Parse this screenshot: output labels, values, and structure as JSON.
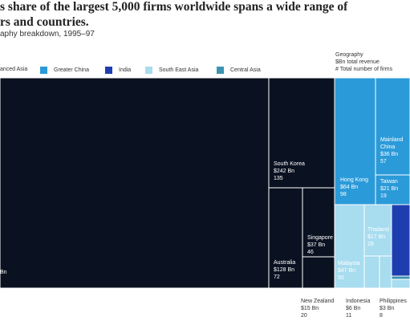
{
  "title_lines": [
    "s share of the largest 5,000 firms worldwide spans a wide range of",
    "rs and countries."
  ],
  "subtitle": "aphy breakdown, 1995–97",
  "legend": [
    {
      "label": "anced Asia",
      "color": "#0a1120"
    },
    {
      "label": "Greater China",
      "color": "#2b9ad9"
    },
    {
      "label": "India",
      "color": "#1e3eb0"
    },
    {
      "label": "South East Asia",
      "color": "#a8dcef"
    },
    {
      "label": "Central Asia",
      "color": "#3c93b2"
    }
  ],
  "key": {
    "title": "Geography",
    "line1": "$Bn total revenue",
    "line2": "# Total number of firms"
  },
  "chart_data": {
    "type": "treemap",
    "title": "s share of the largest 5,000 firms worldwide spans a wide range of rs and countries.",
    "subtitle": "aphy breakdown, 1995–97",
    "nodes": [
      {
        "name": "",
        "group": "anced Asia",
        "revenue_label": "Bn"
      },
      {
        "name": "South Korea",
        "group": "anced Asia",
        "revenue_label": "$242 Bn",
        "revenue_bn": 242,
        "firms": 135
      },
      {
        "name": "Australia",
        "group": "anced Asia",
        "revenue_label": "$128 Bn",
        "revenue_bn": 128,
        "firms": 72
      },
      {
        "name": "Singapore",
        "group": "anced Asia",
        "revenue_label": "$37 Bn",
        "revenue_bn": 37,
        "firms": 46
      },
      {
        "name": "New Zealand",
        "group": "anced Asia",
        "revenue_label": "$15 Bn",
        "revenue_bn": 15,
        "firms": 20
      },
      {
        "name": "Hong Kong",
        "group": "Greater China",
        "revenue_label": "$64 Bn",
        "revenue_bn": 64,
        "firms": 98
      },
      {
        "name": "Mainland China",
        "group": "Greater China",
        "revenue_label": "$36 Bn",
        "revenue_bn": 36,
        "firms": 57
      },
      {
        "name": "Taiwan",
        "group": "Greater China",
        "revenue_label": "$21 Bn",
        "revenue_bn": 21,
        "firms": 19
      },
      {
        "name": "Malaysia",
        "group": "South East Asia",
        "revenue_label": "$47 Bn",
        "revenue_bn": 47,
        "firms": 50
      },
      {
        "name": "Thailand",
        "group": "South East Asia",
        "revenue_label": "$17 Bn",
        "revenue_bn": 17,
        "firms": 28
      },
      {
        "name": "Indonesia",
        "group": "South East Asia",
        "revenue_label": "$6 Bn",
        "revenue_bn": 6,
        "firms": 11
      },
      {
        "name": "Philippines",
        "group": "South East Asia",
        "revenue_label": "$3 Bn",
        "revenue_bn": 3,
        "firms": 8
      },
      {
        "name": "",
        "group": "South East Asia"
      },
      {
        "name": "",
        "group": "India"
      },
      {
        "name": "",
        "group": "Central Asia"
      }
    ]
  }
}
